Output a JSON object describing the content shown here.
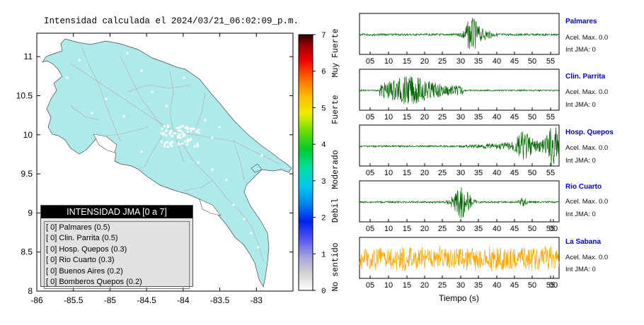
{
  "map": {
    "title": "Intensidad calculada el 2024/03/21_06:02:09_p.m.",
    "x_ticks": [
      "-86",
      "-85.5",
      "-85",
      "-84.5",
      "-84",
      "-83.5",
      "-83"
    ],
    "y_ticks": [
      "11",
      "10.5",
      "10",
      "9.5",
      "9",
      "8.5",
      "8"
    ]
  },
  "colorbar": {
    "ticks": [
      "7",
      "6",
      "5",
      "4",
      "3",
      "2",
      "1",
      "0"
    ],
    "labels": [
      "Muy Fuerte",
      "Fuerte",
      "Moderado",
      "Debil",
      "No sentido"
    ]
  },
  "legend": {
    "title": "INTENSIDAD JMA [0 a 7]",
    "items": [
      "[ 0]  Palmares (0.5)",
      "[ 0]  Clin. Parrita (0.5)",
      "[ 0]  Hosp. Quepos (0.3)",
      "[ 0]  Rio Cuarto (0.3)",
      "[ 0]  Buenos Aires (0.2)",
      "[ 0]  Bomberos Quepos (0.2)"
    ]
  },
  "stations": [
    {
      "name": "Palmares",
      "accel": "Acel. Max. 0.0",
      "int": "Int JMA: 0",
      "color": "#006600",
      "ticks": [
        "05",
        "10",
        "15",
        "20",
        "25",
        "30",
        "35",
        "40",
        "45",
        "50",
        "55"
      ]
    },
    {
      "name": "Clin. Parrita",
      "accel": "Acel. Max. 0.0",
      "int": "Int JMA: 0",
      "color": "#006600",
      "ticks": [
        "05",
        "10",
        "15",
        "20",
        "25",
        "30",
        "35",
        "40",
        "45",
        "50",
        "55"
      ]
    },
    {
      "name": "Hosp. Quepos",
      "accel": "Acel. Max. 0.0",
      "int": "Int JMA: 0",
      "color": "#006600",
      "ticks": [
        "05",
        "10",
        "15",
        "20",
        "25",
        "30",
        "35",
        "40",
        "45",
        "50",
        "55"
      ]
    },
    {
      "name": "Rio Cuarto",
      "accel": "Acel. Max. 0.0",
      "int": "Int JMA: 0",
      "color": "#006600",
      "ticks": [
        "05",
        "10",
        "15",
        "20",
        "25",
        "30",
        "35",
        "40",
        "45",
        "50",
        "55",
        "00"
      ]
    },
    {
      "name": "La Sabana",
      "accel": "Acel. Max. 0.0",
      "int": "Int JMA: 0",
      "color": "#ffa500",
      "ticks": [
        "05",
        "10",
        "15",
        "20",
        "25",
        "30",
        "35",
        "40",
        "45",
        "50",
        "55",
        "00"
      ]
    }
  ],
  "xlabel": "Tiempo (s)",
  "chart_data": [
    {
      "type": "map",
      "title": "Intensidad calculada el 2024/03/21_06:02:09_p.m.",
      "xlim": [
        -86,
        -82.5
      ],
      "ylim": [
        8,
        11.3
      ],
      "colorbar_range": [
        0,
        7
      ],
      "legend_placement": "bottom-left",
      "legend": [
        {
          "station": "Palmares",
          "jma_class": 0,
          "intensity": 0.5
        },
        {
          "station": "Clin. Parrita",
          "jma_class": 0,
          "intensity": 0.5
        },
        {
          "station": "Hosp. Quepos",
          "jma_class": 0,
          "intensity": 0.3
        },
        {
          "station": "Rio Cuarto",
          "jma_class": 0,
          "intensity": 0.3
        },
        {
          "station": "Buenos Aires",
          "jma_class": 0,
          "intensity": 0.2
        },
        {
          "station": "Bomberos Quepos",
          "jma_class": 0,
          "intensity": 0.2
        }
      ]
    },
    {
      "type": "line",
      "xlabel": "Tiempo (s)",
      "series": [
        {
          "name": "Palmares",
          "acel_max": 0.0,
          "int_jma": 0
        },
        {
          "name": "Clin. Parrita",
          "acel_max": 0.0,
          "int_jma": 0
        },
        {
          "name": "Hosp. Quepos",
          "acel_max": 0.0,
          "int_jma": 0
        },
        {
          "name": "Rio Cuarto",
          "acel_max": 0.0,
          "int_jma": 0
        },
        {
          "name": "La Sabana",
          "acel_max": 0.0,
          "int_jma": 0
        }
      ]
    }
  ]
}
